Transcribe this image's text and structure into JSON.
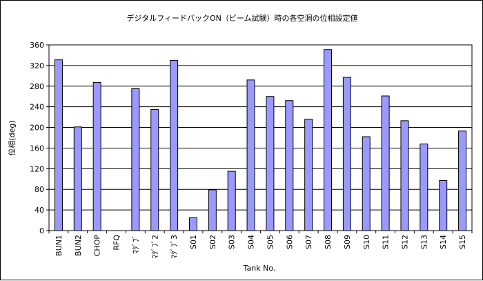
{
  "chart_data": {
    "type": "bar",
    "title": "デジタルフィードバックON（ビーム試験）時の各空洞の位相設定値",
    "xlabel": "Tank No.",
    "ylabel": "位相(deg)",
    "ylim": [
      0,
      360
    ],
    "yticks": [
      0,
      40,
      80,
      120,
      160,
      200,
      240,
      280,
      320,
      360
    ],
    "grid": true,
    "bar_color": "#9999ff",
    "categories": [
      "BUN1",
      "BUN2",
      "CHOP",
      "RFQ",
      "ﾏｸﾞﾌﾞ",
      "ﾏｸﾞﾌﾞ2",
      "ﾏｸﾞﾌﾞ3",
      "S01",
      "S02",
      "S03",
      "S04",
      "S05",
      "S06",
      "S07",
      "S08",
      "S09",
      "S10",
      "S11",
      "S12",
      "S13",
      "S14",
      "S15"
    ],
    "values": [
      331,
      201,
      287,
      null,
      275,
      235,
      330,
      25,
      79,
      115,
      292,
      260,
      252,
      216,
      351,
      297,
      182,
      261,
      213,
      168,
      97,
      193
    ]
  }
}
